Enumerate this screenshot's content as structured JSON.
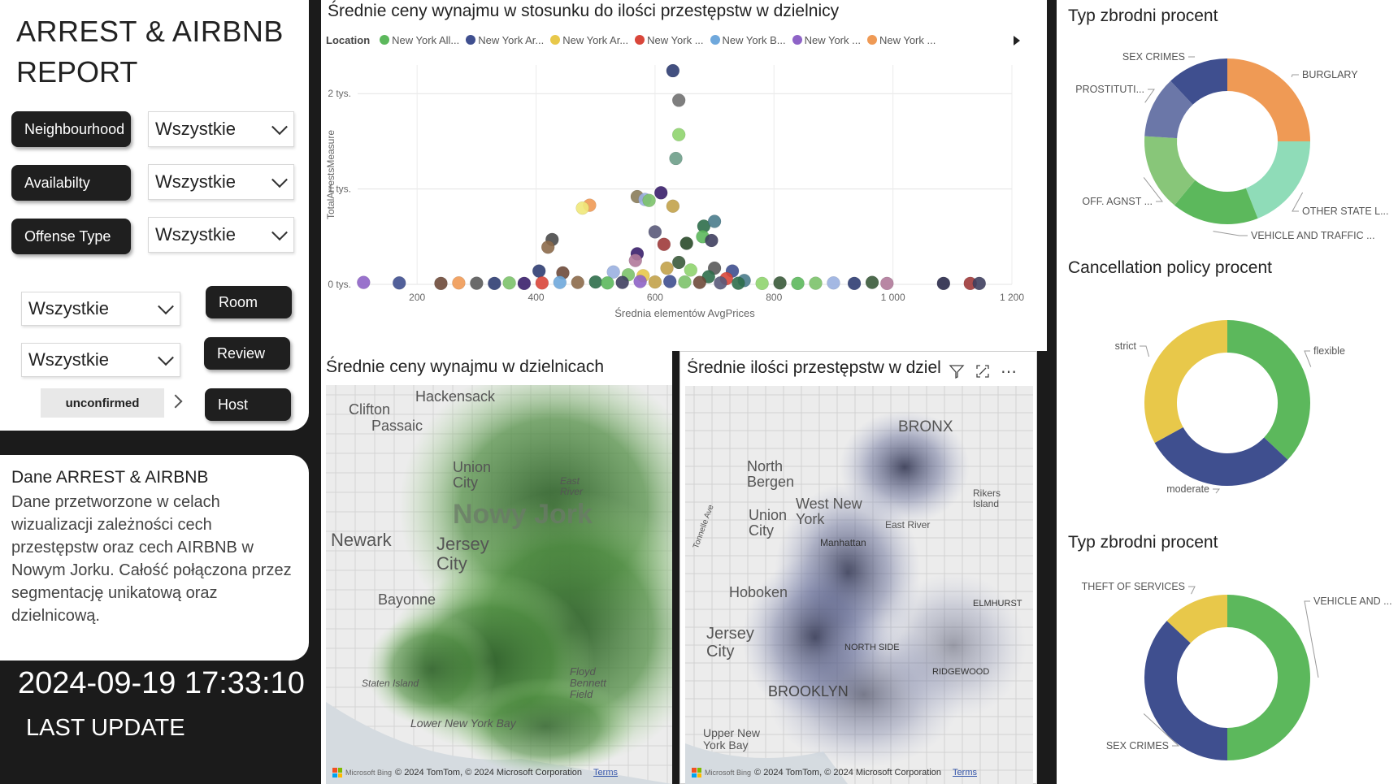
{
  "report": {
    "title_line1": "ARREST & AIRBNB",
    "title_line2": "REPORT"
  },
  "filters": {
    "neighbourhood_label": "Neighbourhood",
    "neighbourhood_value": "Wszystkie",
    "availability_label": "Availabilty",
    "availability_value": "Wszystkie",
    "offense_label": "Offense Type",
    "offense_value": "Wszystkie",
    "room_value": "Wszystkie",
    "review_value": "Wszystkie",
    "room_label": "Room",
    "review_label": "Review",
    "host_label": "Host",
    "host_value": "unconfirmed"
  },
  "description": {
    "title": "Dane ARREST & AIRBNB",
    "body": "Dane przetworzone w celach wizualizacji zależności cech przestępstw oraz cech AIRBNB w Nowym Jorku. Całość połączona przez segmentację unikatową oraz dzielnicową."
  },
  "footer": {
    "timestamp": "2024-09-19 17:33:10",
    "last_update": "LAST UPDATE"
  },
  "scatter": {
    "title": "Średnie ceny wynajmu w stosunku do ilości przestępstw w dzielnicy",
    "legend_title": "Location",
    "legend_items": [
      {
        "label": "New York All...",
        "color": "#5cb85c"
      },
      {
        "label": "New York Ar...",
        "color": "#3f4f8f"
      },
      {
        "label": "New York Ar...",
        "color": "#e8c84a"
      },
      {
        "label": "New York ...",
        "color": "#d9463a"
      },
      {
        "label": "New York B...",
        "color": "#6fa8dc"
      },
      {
        "label": "New York ...",
        "color": "#8e63c7"
      },
      {
        "label": "New York ...",
        "color": "#ef9a55"
      }
    ]
  },
  "chart_data": [
    {
      "type": "scatter",
      "title": "Średnie ceny wynajmu w stosunku do ilości przestępstw w dzielnicy",
      "xlabel": "Średnia elementów AvgPrices",
      "ylabel": "TotalArrestsMeasure",
      "xlim": [
        100,
        1200
      ],
      "ylim": [
        0,
        2300
      ],
      "x_ticks": [
        "200",
        "400",
        "600",
        "800",
        "1 000",
        "1 200"
      ],
      "y_ticks": [
        "0 tys.",
        "1 tys.",
        "2 tys."
      ],
      "points": [
        {
          "x": 630,
          "y": 2240,
          "color": "#2f3d72"
        },
        {
          "x": 640,
          "y": 1930,
          "color": "#707070"
        },
        {
          "x": 640,
          "y": 1570,
          "color": "#8fd46e"
        },
        {
          "x": 635,
          "y": 1320,
          "color": "#6e9e8a"
        },
        {
          "x": 610,
          "y": 960,
          "color": "#3a1f6b"
        },
        {
          "x": 570,
          "y": 920,
          "color": "#8a7c5a"
        },
        {
          "x": 583,
          "y": 890,
          "color": "#9ab0e0"
        },
        {
          "x": 590,
          "y": 880,
          "color": "#7cc26a"
        },
        {
          "x": 630,
          "y": 820,
          "color": "#c2a24a"
        },
        {
          "x": 490,
          "y": 830,
          "color": "#ef9a55"
        },
        {
          "x": 478,
          "y": 800,
          "color": "#f0e87a"
        },
        {
          "x": 682,
          "y": 610,
          "color": "#2e6e4a"
        },
        {
          "x": 700,
          "y": 660,
          "color": "#4a7c8c"
        },
        {
          "x": 680,
          "y": 500,
          "color": "#5cb85c"
        },
        {
          "x": 695,
          "y": 460,
          "color": "#3f3f5f"
        },
        {
          "x": 600,
          "y": 550,
          "color": "#5a5a7a"
        },
        {
          "x": 427,
          "y": 470,
          "color": "#4a4a4a"
        },
        {
          "x": 615,
          "y": 420,
          "color": "#9e3a3a"
        },
        {
          "x": 653,
          "y": 430,
          "color": "#2a4a2a"
        },
        {
          "x": 420,
          "y": 390,
          "color": "#8c6a4a"
        },
        {
          "x": 570,
          "y": 320,
          "color": "#3a1f6b"
        },
        {
          "x": 567,
          "y": 250,
          "color": "#b07a9a"
        },
        {
          "x": 405,
          "y": 140,
          "color": "#2f3d72"
        },
        {
          "x": 445,
          "y": 120,
          "color": "#6e4a3a"
        },
        {
          "x": 640,
          "y": 230,
          "color": "#3a5a3a"
        },
        {
          "x": 620,
          "y": 170,
          "color": "#c2a24a"
        },
        {
          "x": 660,
          "y": 150,
          "color": "#8fd46e"
        },
        {
          "x": 700,
          "y": 170,
          "color": "#5a5a5a"
        },
        {
          "x": 730,
          "y": 140,
          "color": "#3f4f8f"
        },
        {
          "x": 530,
          "y": 130,
          "color": "#9ab0e0"
        },
        {
          "x": 555,
          "y": 100,
          "color": "#7cc26a"
        },
        {
          "x": 580,
          "y": 90,
          "color": "#e8c84a"
        },
        {
          "x": 690,
          "y": 80,
          "color": "#2e6e4a"
        },
        {
          "x": 720,
          "y": 60,
          "color": "#d9463a"
        },
        {
          "x": 750,
          "y": 40,
          "color": "#4a7c8c"
        },
        {
          "x": 110,
          "y": 20,
          "color": "#8e63c7"
        },
        {
          "x": 170,
          "y": 15,
          "color": "#3f4f8f"
        },
        {
          "x": 240,
          "y": 10,
          "color": "#6e4a3a"
        },
        {
          "x": 270,
          "y": 15,
          "color": "#ef9a55"
        },
        {
          "x": 300,
          "y": 12,
          "color": "#5a5a5a"
        },
        {
          "x": 330,
          "y": 10,
          "color": "#2f3d72"
        },
        {
          "x": 355,
          "y": 15,
          "color": "#7cc26a"
        },
        {
          "x": 380,
          "y": 10,
          "color": "#3a1f6b"
        },
        {
          "x": 410,
          "y": 15,
          "color": "#d9463a"
        },
        {
          "x": 440,
          "y": 20,
          "color": "#6fa8dc"
        },
        {
          "x": 470,
          "y": 20,
          "color": "#8c6a4a"
        },
        {
          "x": 500,
          "y": 25,
          "color": "#2e6e4a"
        },
        {
          "x": 520,
          "y": 15,
          "color": "#5cb85c"
        },
        {
          "x": 545,
          "y": 20,
          "color": "#3f3f5f"
        },
        {
          "x": 575,
          "y": 30,
          "color": "#8e63c7"
        },
        {
          "x": 600,
          "y": 25,
          "color": "#c2a24a"
        },
        {
          "x": 625,
          "y": 30,
          "color": "#3f4f8f"
        },
        {
          "x": 650,
          "y": 25,
          "color": "#7cc26a"
        },
        {
          "x": 675,
          "y": 20,
          "color": "#6e4a3a"
        },
        {
          "x": 710,
          "y": 15,
          "color": "#5a5a7a"
        },
        {
          "x": 740,
          "y": 12,
          "color": "#2e6e4a"
        },
        {
          "x": 780,
          "y": 10,
          "color": "#8fd46e"
        },
        {
          "x": 810,
          "y": 15,
          "color": "#3a5a3a"
        },
        {
          "x": 840,
          "y": 10,
          "color": "#5cb85c"
        },
        {
          "x": 870,
          "y": 12,
          "color": "#7cc26a"
        },
        {
          "x": 900,
          "y": 15,
          "color": "#9ab0e0"
        },
        {
          "x": 935,
          "y": 10,
          "color": "#2f3d72"
        },
        {
          "x": 965,
          "y": 20,
          "color": "#3a5a3a"
        },
        {
          "x": 990,
          "y": 10,
          "color": "#b07a9a"
        },
        {
          "x": 1085,
          "y": 10,
          "color": "#2a2a4a"
        },
        {
          "x": 1130,
          "y": 10,
          "color": "#9e3a3a"
        },
        {
          "x": 1145,
          "y": 10,
          "color": "#3f3f5f"
        }
      ]
    },
    {
      "type": "pie",
      "title": "Typ zbrodni procent",
      "slices": [
        {
          "label": "BURGLARY",
          "value": 25,
          "color": "#ef9a55"
        },
        {
          "label": "OTHER STATE L...",
          "value": 19,
          "color": "#8fdcb8"
        },
        {
          "label": "VEHICLE AND TRAFFIC ...",
          "value": 17,
          "color": "#5cb85c"
        },
        {
          "label": "OFF. AGNST ...",
          "value": 15,
          "color": "#88c679"
        },
        {
          "label": "PROSTITUTI...",
          "value": 12,
          "color": "#6b77a8"
        },
        {
          "label": "SEX CRIMES",
          "value": 12,
          "color": "#3f4f8f"
        }
      ]
    },
    {
      "type": "pie",
      "title": "Cancellation policy procent",
      "slices": [
        {
          "label": "flexible",
          "value": 37,
          "color": "#5cb85c"
        },
        {
          "label": "moderate",
          "value": 30,
          "color": "#3f4f8f"
        },
        {
          "label": "strict",
          "value": 33,
          "color": "#e8c84a"
        }
      ]
    },
    {
      "type": "pie",
      "title": "Typ zbrodni procent",
      "slices": [
        {
          "label": "VEHICLE AND ...",
          "value": 50,
          "color": "#5cb85c"
        },
        {
          "label": "SEX CRIMES",
          "value": 37,
          "color": "#3f4f8f"
        },
        {
          "label": "THEFT OF SERVICES",
          "value": 13,
          "color": "#e8c84a"
        }
      ]
    }
  ],
  "map1": {
    "title": "Średnie ceny wynajmu w dzielnicach",
    "city_label": "Nowy Jork",
    "places": [
      "Hackensack",
      "Clifton",
      "Passaic",
      "Union City",
      "East River",
      "Newark",
      "Jersey City",
      "Bayonne",
      "Staten Island",
      "Floyd Bennett Field",
      "Lower New York Bay"
    ],
    "credit": "© 2024 TomTom, © 2024 Microsoft Corporation",
    "bing": "Microsoft Bing",
    "terms": "Terms"
  },
  "map2": {
    "title": "Średnie ilości przestępstw w dziel",
    "places": [
      "BRONX",
      "North Bergen",
      "West New York",
      "Union City",
      "Rikers Island",
      "Manhattan",
      "East River",
      "Hoboken",
      "Jersey City",
      "NORTH SIDE",
      "ELMHURST",
      "RIDGEWOOD",
      "BROOKLYN",
      "Tonnelle Ave",
      "Upper New York Bay"
    ],
    "credit": "© 2024 TomTom, © 2024 Microsoft Corporation",
    "bing": "Microsoft Bing",
    "terms": "Terms"
  },
  "colors": {
    "dark": "#1b1b1b",
    "green": "#5cb85c",
    "navy": "#3f4f8f",
    "yellow": "#e8c84a",
    "orange": "#ef9a55"
  }
}
